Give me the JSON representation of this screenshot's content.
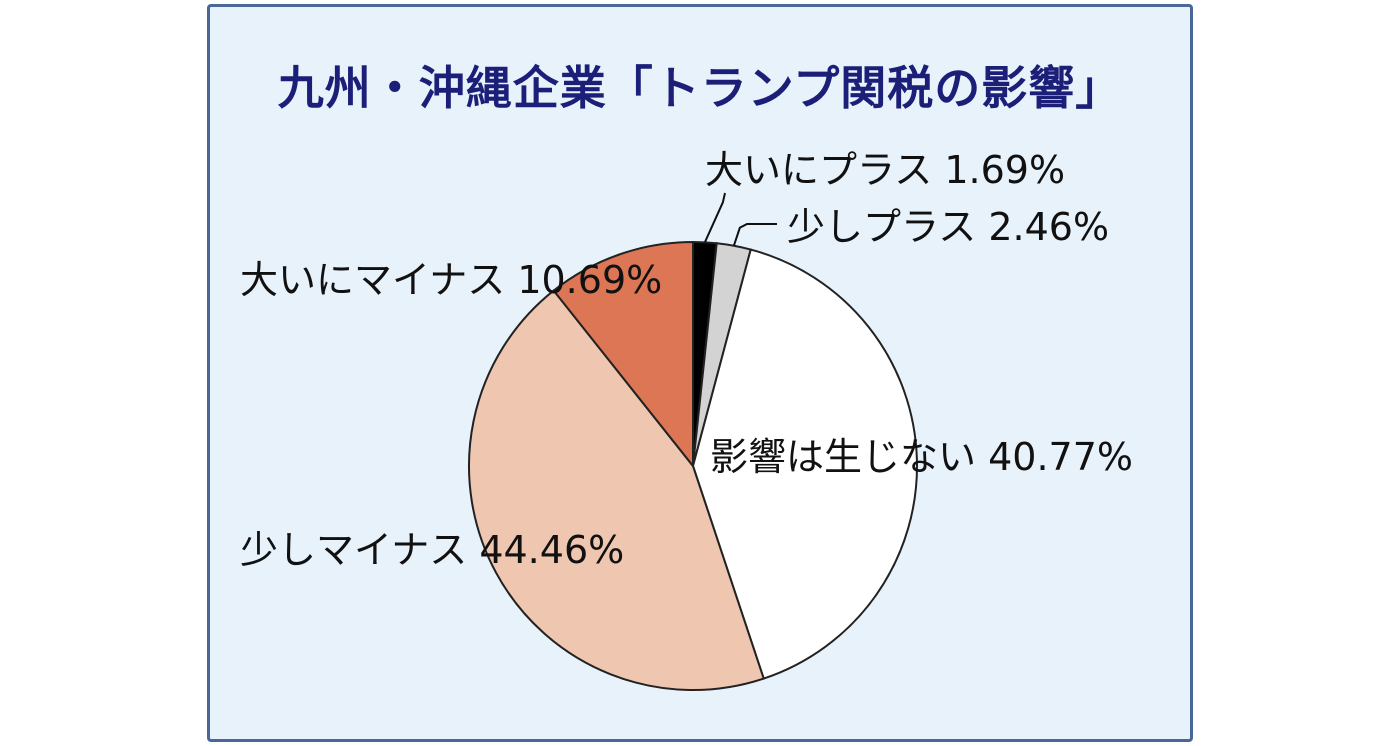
{
  "chart_data": {
    "type": "pie",
    "title": "九州・沖縄企業「トランプ関税の影響」",
    "slices": [
      {
        "category": "大いにプラス",
        "value": 1.69,
        "value_label": "1.69%",
        "color": "#000000"
      },
      {
        "category": "少しプラス",
        "value": 2.46,
        "value_label": "2.46%",
        "color": "#d3d3d3"
      },
      {
        "category": "影響は生じない",
        "value": 40.77,
        "value_label": "40.77%",
        "color": "#ffffff"
      },
      {
        "category": "少しマイナス",
        "value": 44.46,
        "value_label": "44.46%",
        "color": "#efc6b0"
      },
      {
        "category": "大いにマイナス",
        "value": 10.69,
        "value_label": "10.69%",
        "color": "#dc7655"
      }
    ],
    "legend": "none",
    "start_angle": "12 o'clock, clockwise"
  },
  "style": {
    "panel_background": "#e8f2fb",
    "panel_border": "#4a6797",
    "title_color": "#1b1f78",
    "slice_outline": "#222222"
  }
}
